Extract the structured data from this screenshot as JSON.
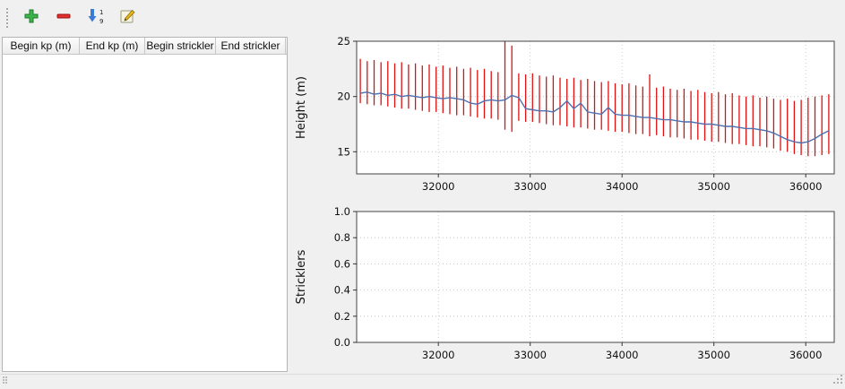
{
  "window": {
    "background": "#f0f0f0"
  },
  "toolbar": {
    "buttons": [
      {
        "icon": "plus-icon",
        "color": "#3cb44a"
      },
      {
        "icon": "minus-icon",
        "color": "#e03030"
      },
      {
        "icon": "sort-numeric-down-icon",
        "color": "#3a7bd5",
        "digits_top": "1",
        "digits_bottom": "9"
      },
      {
        "icon": "edit-icon",
        "color": "#e8b81a"
      }
    ]
  },
  "table": {
    "columns": [
      "Begin kp (m)",
      "End kp (m)",
      "Begin strickler",
      "End strickler"
    ],
    "rows": []
  },
  "chart_data": [
    {
      "type": "line",
      "title": "",
      "xlabel": "",
      "ylabel": "Height (m)",
      "xlim": [
        31110,
        36310
      ],
      "ylim": [
        13,
        25
      ],
      "xticks": [
        32000,
        33000,
        34000,
        35000,
        36000
      ],
      "xtick_labels": [
        "32000",
        "33000",
        "34000",
        "35000",
        "36000"
      ],
      "yticks": [
        15,
        20,
        25
      ],
      "ytick_labels": [
        "15",
        "20",
        "25"
      ],
      "grid": true,
      "legend": "none",
      "x_start": 31150,
      "x_step": 75,
      "series": [
        {
          "name": "section-min-max-bars",
          "style": "vbars",
          "color": "#dd1111",
          "ymin": [
            19.4,
            19.3,
            19.2,
            19.2,
            19.1,
            19.0,
            18.9,
            18.9,
            18.8,
            18.7,
            18.6,
            18.6,
            18.5,
            18.4,
            18.3,
            18.3,
            18.2,
            18.1,
            18.0,
            18.0,
            17.9,
            17.0,
            16.8,
            17.8,
            17.7,
            17.7,
            17.6,
            17.5,
            17.4,
            17.4,
            17.3,
            17.2,
            17.2,
            17.1,
            17.0,
            17.0,
            16.9,
            16.8,
            16.8,
            16.7,
            16.6,
            16.6,
            16.4,
            16.5,
            16.4,
            16.3,
            16.3,
            16.2,
            16.1,
            16.1,
            16.0,
            15.9,
            15.9,
            15.8,
            15.7,
            15.7,
            15.6,
            15.5,
            15.5,
            15.4,
            15.3,
            15.1,
            15.0,
            14.8,
            14.7,
            14.6,
            14.6,
            14.7,
            14.8
          ],
          "ymax": [
            23.4,
            23.2,
            23.3,
            23.1,
            23.2,
            23.0,
            23.1,
            22.9,
            23.0,
            22.8,
            22.9,
            22.7,
            22.8,
            22.6,
            22.7,
            22.5,
            22.6,
            22.4,
            22.5,
            22.3,
            22.2,
            25.0,
            24.6,
            22.1,
            22.0,
            22.1,
            21.9,
            21.8,
            21.9,
            21.7,
            21.6,
            21.7,
            21.5,
            21.6,
            21.4,
            21.3,
            21.4,
            21.2,
            21.1,
            21.2,
            21.0,
            20.9,
            22.0,
            20.8,
            20.9,
            20.7,
            20.6,
            20.7,
            20.5,
            20.6,
            20.4,
            20.3,
            20.4,
            20.2,
            20.3,
            20.1,
            20.0,
            20.1,
            19.9,
            20.0,
            19.8,
            19.7,
            19.8,
            19.6,
            19.7,
            19.9,
            20.0,
            20.1,
            20.2
          ]
        },
        {
          "name": "mean-height-line",
          "style": "line",
          "color": "#4f6fae",
          "values": [
            20.3,
            20.4,
            20.2,
            20.3,
            20.1,
            20.2,
            20.0,
            20.1,
            20.0,
            19.9,
            20.0,
            19.9,
            19.8,
            19.9,
            19.8,
            19.7,
            19.4,
            19.3,
            19.6,
            19.7,
            19.6,
            19.7,
            20.1,
            19.9,
            18.9,
            18.8,
            18.7,
            18.7,
            18.6,
            19.0,
            19.6,
            18.9,
            19.4,
            18.6,
            18.5,
            18.4,
            19.0,
            18.4,
            18.3,
            18.3,
            18.2,
            18.1,
            18.1,
            18.0,
            17.9,
            17.9,
            17.8,
            17.7,
            17.7,
            17.6,
            17.5,
            17.5,
            17.4,
            17.3,
            17.3,
            17.2,
            17.1,
            17.1,
            17.0,
            16.9,
            16.7,
            16.4,
            16.1,
            15.9,
            15.8,
            15.9,
            16.2,
            16.6,
            16.9
          ]
        }
      ]
    },
    {
      "type": "line",
      "title": "",
      "xlabel": "",
      "ylabel": "Stricklers",
      "xlim": [
        31110,
        36310
      ],
      "ylim": [
        0,
        1
      ],
      "xticks": [
        32000,
        33000,
        34000,
        35000,
        36000
      ],
      "xtick_labels": [
        "32000",
        "33000",
        "34000",
        "35000",
        "36000"
      ],
      "yticks": [
        0,
        0.2,
        0.4,
        0.6,
        0.8,
        1
      ],
      "ytick_labels": [
        "0.0",
        "0.2",
        "0.4",
        "0.6",
        "0.8",
        "1.0"
      ],
      "grid": true,
      "legend": "none",
      "series": []
    }
  ],
  "status_bar": {
    "text": ""
  }
}
